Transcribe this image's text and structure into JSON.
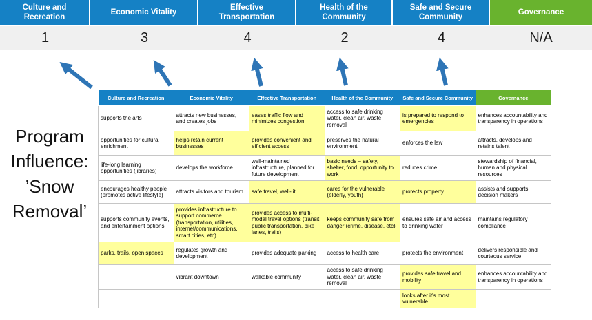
{
  "program_label": "Program Influence: ’Snow Removal’",
  "colors": {
    "category_blue": "#1581c5",
    "governance_green": "#69b32e",
    "score_band_gray": "#f0f0f0",
    "highlight_yellow": "#ffff9c",
    "arrow_blue": "#2e75b6"
  },
  "banner": {
    "categories": [
      {
        "label": "Culture and Recreation",
        "score": "1",
        "color": "#1581c5"
      },
      {
        "label": "Economic Vitality",
        "score": "3",
        "color": "#1581c5"
      },
      {
        "label": "Effective Transportation",
        "score": "4",
        "color": "#1581c5"
      },
      {
        "label": "Health of the Community",
        "score": "2",
        "color": "#1581c5"
      },
      {
        "label": "Safe and Secure Community",
        "score": "4",
        "color": "#1581c5"
      },
      {
        "label": "Governance",
        "score": "N/A",
        "color": "#69b32e"
      }
    ]
  },
  "matrix": {
    "headers": [
      {
        "label": "Culture and Recreation",
        "color": "#1581c5"
      },
      {
        "label": "Economic Vitality",
        "color": "#1581c5"
      },
      {
        "label": "Effective Transportation",
        "color": "#1581c5"
      },
      {
        "label": "Health of the Community",
        "color": "#1581c5"
      },
      {
        "label": "Safe and Secure Community",
        "color": "#1581c5"
      },
      {
        "label": "Governance",
        "color": "#69b32e"
      }
    ],
    "rows": [
      [
        {
          "text": "supports the arts",
          "hl": false
        },
        {
          "text": "attracts new businesses, and creates jobs",
          "hl": false
        },
        {
          "text": "eases traffic flow and minimizes congestion",
          "hl": true
        },
        {
          "text": "access to safe drinking water, clean air, waste removal",
          "hl": false
        },
        {
          "text": "is prepared to respond to emergencies",
          "hl": true
        },
        {
          "text": "enhances accountability and transparency in operations",
          "hl": false
        }
      ],
      [
        {
          "text": "opportunities for cultural enrichment",
          "hl": false
        },
        {
          "text": "helps retain current businesses",
          "hl": true
        },
        {
          "text": "provides convenient and efficient access",
          "hl": true
        },
        {
          "text": "preserves the natural environment",
          "hl": false
        },
        {
          "text": "enforces the law",
          "hl": false
        },
        {
          "text": "attracts, develops and retains talent",
          "hl": false
        }
      ],
      [
        {
          "text": "life-long learning opportunities (libraries)",
          "hl": false
        },
        {
          "text": "develops the workforce",
          "hl": false
        },
        {
          "text": "well-maintained infrastructure, planned for future development",
          "hl": false
        },
        {
          "text": "basic needs – safety, shelter, food, opportunity to work",
          "hl": true
        },
        {
          "text": "reduces crime",
          "hl": false
        },
        {
          "text": "stewardship of financial, human and physical resources",
          "hl": false
        }
      ],
      [
        {
          "text": "encourages healthy people (promotes active lifestyle)",
          "hl": false
        },
        {
          "text": "attracts visitors and tourism",
          "hl": false
        },
        {
          "text": "safe travel, well-lit",
          "hl": true
        },
        {
          "text": "cares for the vulnerable (elderly, youth)",
          "hl": true
        },
        {
          "text": "protects property",
          "hl": true
        },
        {
          "text": "assists and supports decision makers",
          "hl": false
        }
      ],
      [
        {
          "text": "supports community events, and entertainment options",
          "hl": false
        },
        {
          "text": "provides infrastructure to support commerce (transportation, utilities, internet/communications, smart cities, etc)",
          "hl": true
        },
        {
          "text": "provides access to multi-modal travel options (transit, public transportation, bike lanes, trails)",
          "hl": true
        },
        {
          "text": "keeps community safe from danger (crime, disease, etc)",
          "hl": true
        },
        {
          "text": "ensures safe air and access to drinking water",
          "hl": false
        },
        {
          "text": "maintains regulatory compliance",
          "hl": false
        }
      ],
      [
        {
          "text": "parks, trails, open spaces",
          "hl": true
        },
        {
          "text": "regulates growth and development",
          "hl": false
        },
        {
          "text": "provides adequate parking",
          "hl": false
        },
        {
          "text": "access to health care",
          "hl": false
        },
        {
          "text": "protects the environment",
          "hl": false
        },
        {
          "text": "delivers responsible and courteous service",
          "hl": false
        }
      ],
      [
        {
          "text": "",
          "hl": false
        },
        {
          "text": "vibrant downtown",
          "hl": false
        },
        {
          "text": "walkable community",
          "hl": false
        },
        {
          "text": "access to safe drinking water, clean air, waste removal",
          "hl": false
        },
        {
          "text": "provides safe travel and mobility",
          "hl": true
        },
        {
          "text": "enhances accountability and transparency in operations",
          "hl": false
        }
      ],
      [
        {
          "text": "",
          "hl": false
        },
        {
          "text": "",
          "hl": false
        },
        {
          "text": "",
          "hl": false
        },
        {
          "text": "",
          "hl": false
        },
        {
          "text": "looks after it's most vulnerable",
          "hl": true
        },
        {
          "text": "",
          "hl": false
        }
      ]
    ]
  }
}
